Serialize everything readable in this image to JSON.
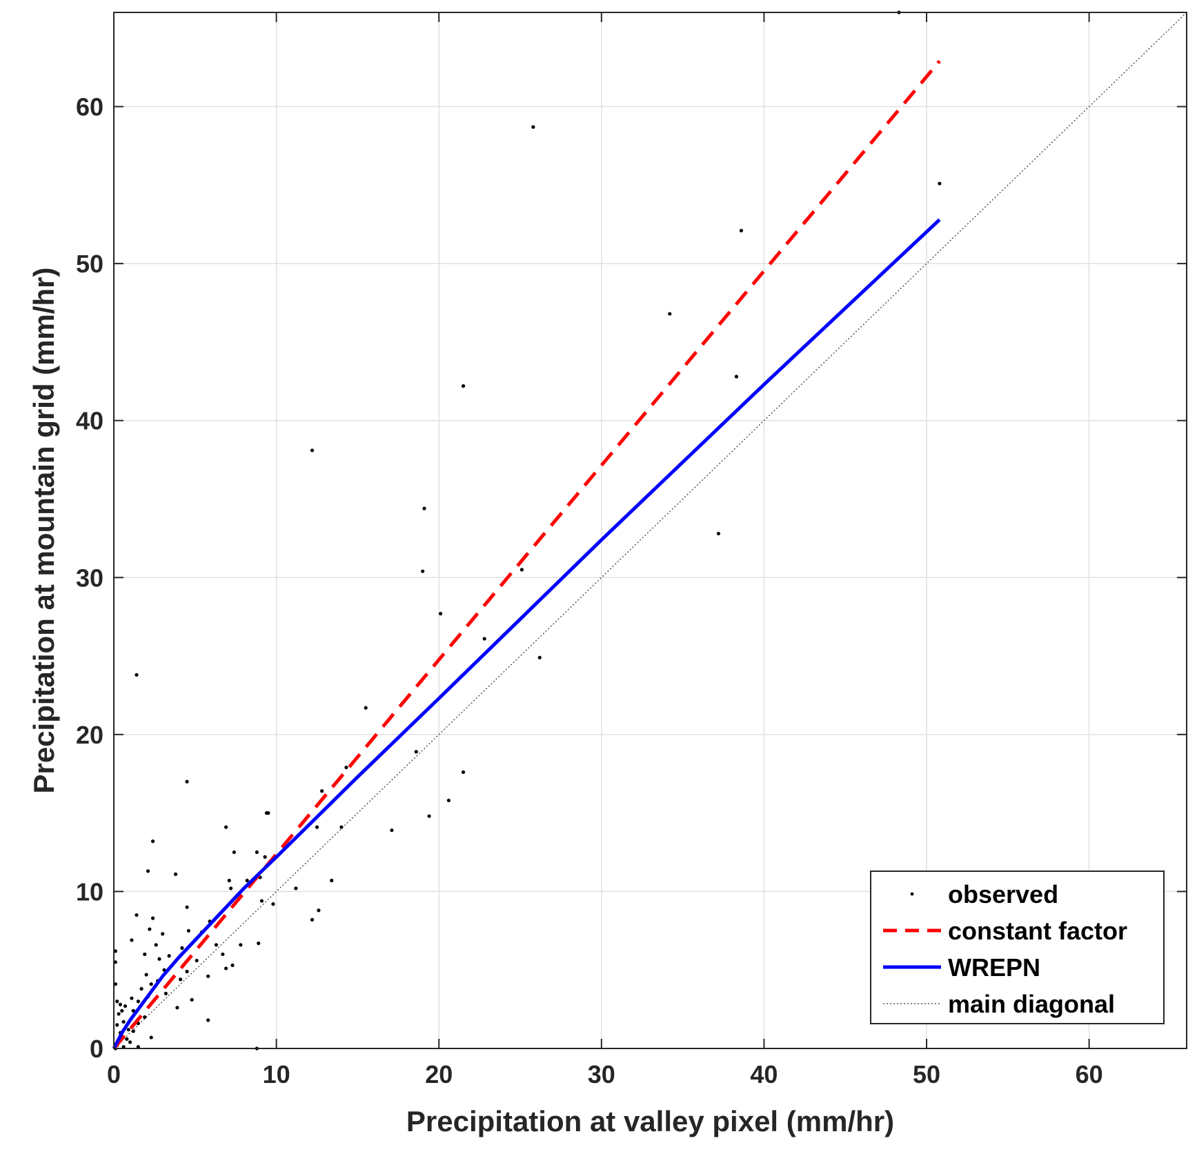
{
  "chart_data": {
    "type": "scatter",
    "xlabel": "Precipitation at valley pixel (mm/hr)",
    "ylabel": "Precipitation at mountain grid (mm/hr)",
    "xlim": [
      0,
      66
    ],
    "ylim": [
      0,
      66
    ],
    "x_ticks": [
      "0",
      "10",
      "20",
      "30",
      "40",
      "50",
      "60"
    ],
    "y_ticks": [
      "0",
      "10",
      "20",
      "30",
      "40",
      "50",
      "60"
    ],
    "grid": true,
    "legend_position": "bottom-right",
    "colors": {
      "observed": "#000000",
      "constant_factor": "#ff0000",
      "wrepn": "#0000ff",
      "diagonal": "#555555",
      "grid": "#e0e0e0"
    },
    "series": [
      {
        "name": "observed",
        "kind": "points",
        "points": [
          [
            48.3,
            66.0
          ],
          [
            25.8,
            58.7
          ],
          [
            50.8,
            55.1
          ],
          [
            38.6,
            52.1
          ],
          [
            34.2,
            46.8
          ],
          [
            38.3,
            42.8
          ],
          [
            21.5,
            42.2
          ],
          [
            12.2,
            38.1
          ],
          [
            19.1,
            34.4
          ],
          [
            37.2,
            32.8
          ],
          [
            19.0,
            30.4
          ],
          [
            25.1,
            30.5
          ],
          [
            20.1,
            27.7
          ],
          [
            22.8,
            26.1
          ],
          [
            26.2,
            24.9
          ],
          [
            1.4,
            23.8
          ],
          [
            15.5,
            21.7
          ],
          [
            18.6,
            18.9
          ],
          [
            14.3,
            17.9
          ],
          [
            21.5,
            17.6
          ],
          [
            4.5,
            17.0
          ],
          [
            12.8,
            16.4
          ],
          [
            20.6,
            15.8
          ],
          [
            9.4,
            15.0
          ],
          [
            9.5,
            15.0
          ],
          [
            19.4,
            14.8
          ],
          [
            14.0,
            14.1
          ],
          [
            12.5,
            14.1
          ],
          [
            6.9,
            14.1
          ],
          [
            17.1,
            13.9
          ],
          [
            2.4,
            13.2
          ],
          [
            7.4,
            12.5
          ],
          [
            8.8,
            12.5
          ],
          [
            9.3,
            12.2
          ],
          [
            2.1,
            11.3
          ],
          [
            3.8,
            11.1
          ],
          [
            7.1,
            10.7
          ],
          [
            9.0,
            10.9
          ],
          [
            8.2,
            10.7
          ],
          [
            13.4,
            10.7
          ],
          [
            7.2,
            10.2
          ],
          [
            11.2,
            10.2
          ],
          [
            4.5,
            9.0
          ],
          [
            9.1,
            9.4
          ],
          [
            9.8,
            9.2
          ],
          [
            12.6,
            8.8
          ],
          [
            1.4,
            8.5
          ],
          [
            2.4,
            8.3
          ],
          [
            12.2,
            8.2
          ],
          [
            5.9,
            8.1
          ],
          [
            2.2,
            7.6
          ],
          [
            4.6,
            7.5
          ],
          [
            5.4,
            7.4
          ],
          [
            3.0,
            7.3
          ],
          [
            1.1,
            6.9
          ],
          [
            8.9,
            6.7
          ],
          [
            7.8,
            6.6
          ],
          [
            6.3,
            6.6
          ],
          [
            2.6,
            6.6
          ],
          [
            4.2,
            6.4
          ],
          [
            0.1,
            6.2
          ],
          [
            1.9,
            6.0
          ],
          [
            2.8,
            5.7
          ],
          [
            3.4,
            5.9
          ],
          [
            6.7,
            6.0
          ],
          [
            5.1,
            5.6
          ],
          [
            7.3,
            5.3
          ],
          [
            0.1,
            5.5
          ],
          [
            6.9,
            5.1
          ],
          [
            3.1,
            5.0
          ],
          [
            4.5,
            4.9
          ],
          [
            2.0,
            4.7
          ],
          [
            5.8,
            4.6
          ],
          [
            4.1,
            4.4
          ],
          [
            2.7,
            4.3
          ],
          [
            2.3,
            4.1
          ],
          [
            0.1,
            4.1
          ],
          [
            1.7,
            3.8
          ],
          [
            3.2,
            3.5
          ],
          [
            2.1,
            3.3
          ],
          [
            1.1,
            3.2
          ],
          [
            4.8,
            3.1
          ],
          [
            0.2,
            3.0
          ],
          [
            1.5,
            3.0
          ],
          [
            0.4,
            2.8
          ],
          [
            0.7,
            2.7
          ],
          [
            3.9,
            2.6
          ],
          [
            0.5,
            2.4
          ],
          [
            1.2,
            2.4
          ],
          [
            0.3,
            2.2
          ],
          [
            1.9,
            2.0
          ],
          [
            5.8,
            1.8
          ],
          [
            0.6,
            1.7
          ],
          [
            1.5,
            1.6
          ],
          [
            0.2,
            1.5
          ],
          [
            0.9,
            1.2
          ],
          [
            1.2,
            1.1
          ],
          [
            0.4,
            1.0
          ],
          [
            2.3,
            0.7
          ],
          [
            0.8,
            0.6
          ],
          [
            0.3,
            0.5
          ],
          [
            1.0,
            0.4
          ],
          [
            0.2,
            0.2
          ],
          [
            0.6,
            0.1
          ],
          [
            1.5,
            0.1
          ],
          [
            8.8,
            0.0
          ],
          [
            0.1,
            0.0
          ]
        ]
      },
      {
        "name": "constant factor",
        "kind": "line",
        "style": "dashed",
        "points": [
          [
            0,
            0
          ],
          [
            50.8,
            62.9
          ]
        ]
      },
      {
        "name": "WREPN",
        "kind": "line",
        "style": "solid",
        "points": [
          [
            0,
            0
          ],
          [
            0.5,
            1.0
          ],
          [
            1,
            1.8
          ],
          [
            2,
            3.2
          ],
          [
            3,
            4.6
          ],
          [
            4,
            5.8
          ],
          [
            6,
            8.0
          ],
          [
            8,
            10.2
          ],
          [
            10,
            12.2
          ],
          [
            15,
            17.3
          ],
          [
            20,
            22.3
          ],
          [
            30,
            32.4
          ],
          [
            40,
            42.3
          ],
          [
            50.8,
            52.8
          ]
        ]
      },
      {
        "name": "main diagonal",
        "kind": "line",
        "style": "dotted",
        "points": [
          [
            0,
            0
          ],
          [
            66,
            66
          ]
        ]
      }
    ]
  }
}
